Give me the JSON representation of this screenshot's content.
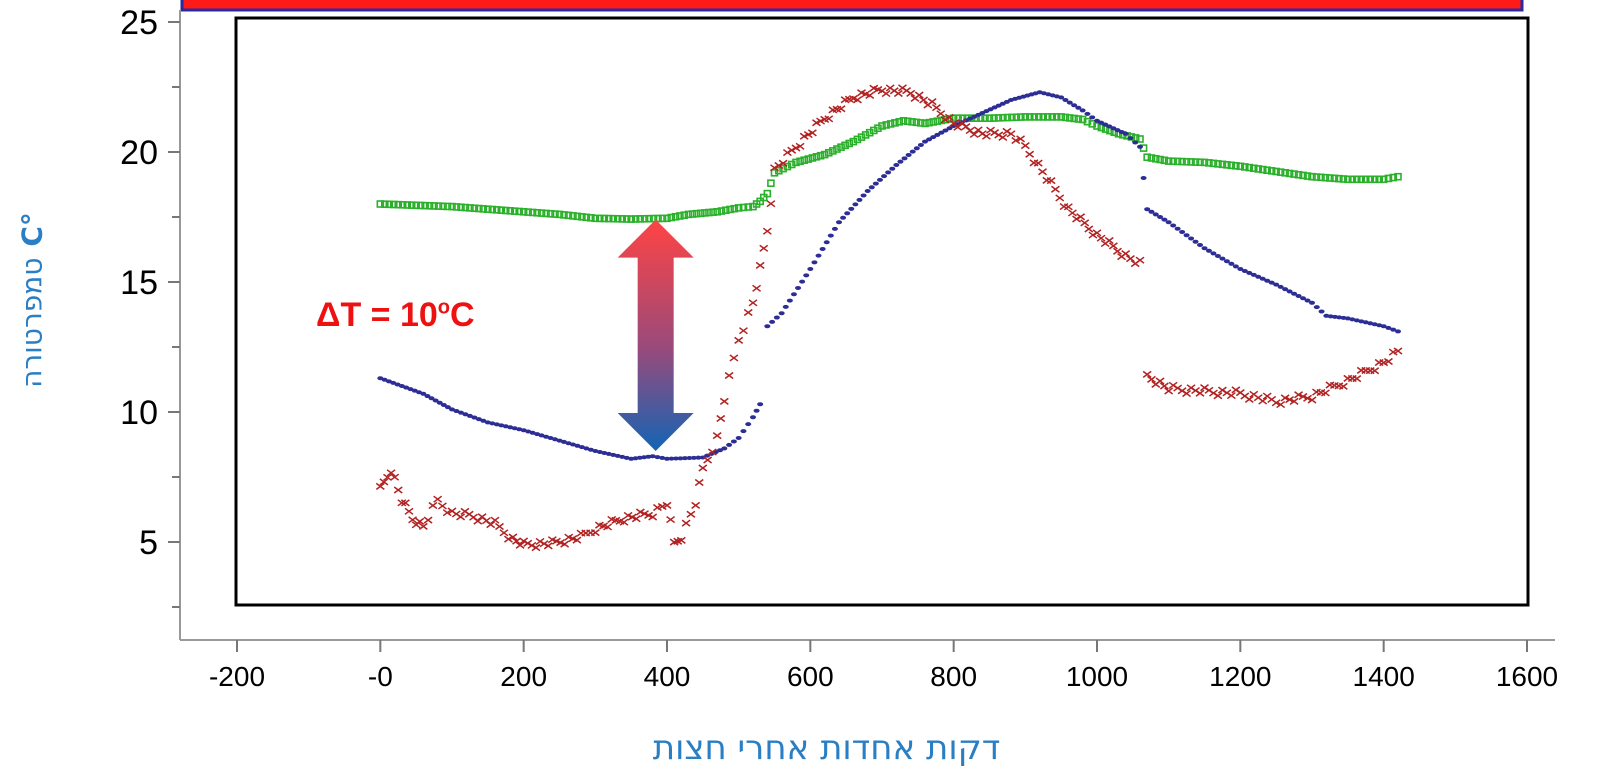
{
  "chart_data": {
    "type": "scatter",
    "title": "",
    "xlabel": "דקות אחדות אחרי חצות",
    "ylabel": "טמפרטורה",
    "ylabel_unit": "C°",
    "xlim": [
      -220,
      1600
    ],
    "ylim": [
      1.2,
      25
    ],
    "x_ticks": [
      -200,
      0,
      200,
      400,
      600,
      800,
      1000,
      1200,
      1400,
      1600
    ],
    "x_tick_labels": [
      "-200",
      "-0",
      "200",
      "400",
      "600",
      "800",
      "1000",
      "1200",
      "1400",
      "1600"
    ],
    "y_ticks": [
      5,
      10,
      15,
      20,
      25
    ],
    "y_tick_labels": [
      "5",
      "10",
      "15",
      "20",
      "25"
    ],
    "grid": false,
    "annotation": {
      "text_main": "ΔT = 10",
      "text_sup": "o",
      "text_unit": "C",
      "arrow_x": 380,
      "arrow_from": 8.5,
      "arrow_to": 17.4
    },
    "series": [
      {
        "color": "#2bb02b",
        "marker": "square-step",
        "points": [
          [
            0,
            18.0
          ],
          [
            50,
            17.95
          ],
          [
            100,
            17.9
          ],
          [
            150,
            17.8
          ],
          [
            200,
            17.7
          ],
          [
            250,
            17.6
          ],
          [
            300,
            17.45
          ],
          [
            350,
            17.42
          ],
          [
            400,
            17.45
          ],
          [
            430,
            17.6
          ],
          [
            470,
            17.7
          ],
          [
            500,
            17.85
          ],
          [
            520,
            17.9
          ],
          [
            530,
            18.1
          ],
          [
            540,
            18.4
          ],
          [
            550,
            19.2
          ],
          [
            580,
            19.6
          ],
          [
            620,
            19.9
          ],
          [
            660,
            20.4
          ],
          [
            700,
            21.0
          ],
          [
            730,
            21.2
          ],
          [
            760,
            21.1
          ],
          [
            800,
            21.3
          ],
          [
            850,
            21.3
          ],
          [
            900,
            21.35
          ],
          [
            950,
            21.35
          ],
          [
            980,
            21.25
          ],
          [
            1000,
            21.0
          ],
          [
            1030,
            20.7
          ],
          [
            1060,
            20.5
          ],
          [
            1070,
            19.8
          ],
          [
            1100,
            19.65
          ],
          [
            1150,
            19.6
          ],
          [
            1200,
            19.45
          ],
          [
            1250,
            19.25
          ],
          [
            1300,
            19.05
          ],
          [
            1350,
            18.95
          ],
          [
            1400,
            18.95
          ],
          [
            1420,
            19.05
          ]
        ]
      },
      {
        "color": "#2d2d96",
        "marker": "dot",
        "points": [
          [
            0,
            11.3
          ],
          [
            30,
            11.0
          ],
          [
            60,
            10.7
          ],
          [
            100,
            10.1
          ],
          [
            150,
            9.6
          ],
          [
            200,
            9.3
          ],
          [
            250,
            8.9
          ],
          [
            300,
            8.5
          ],
          [
            350,
            8.2
          ],
          [
            380,
            8.3
          ],
          [
            400,
            8.2
          ],
          [
            450,
            8.25
          ],
          [
            480,
            8.6
          ],
          [
            500,
            9.0
          ],
          [
            520,
            9.8
          ],
          [
            530,
            10.3
          ],
          [
            540,
            13.3
          ],
          [
            560,
            13.8
          ],
          [
            600,
            15.5
          ],
          [
            640,
            17.3
          ],
          [
            680,
            18.5
          ],
          [
            720,
            19.5
          ],
          [
            760,
            20.4
          ],
          [
            800,
            21.0
          ],
          [
            840,
            21.5
          ],
          [
            880,
            22.0
          ],
          [
            920,
            22.3
          ],
          [
            950,
            22.1
          ],
          [
            980,
            21.6
          ],
          [
            1000,
            21.2
          ],
          [
            1040,
            20.7
          ],
          [
            1060,
            20.2
          ],
          [
            1070,
            17.8
          ],
          [
            1100,
            17.3
          ],
          [
            1150,
            16.3
          ],
          [
            1200,
            15.5
          ],
          [
            1250,
            14.9
          ],
          [
            1300,
            14.2
          ],
          [
            1320,
            13.7
          ],
          [
            1350,
            13.6
          ],
          [
            1400,
            13.3
          ],
          [
            1420,
            13.1
          ]
        ]
      },
      {
        "color": "#b22222",
        "marker": "cross",
        "points": [
          [
            0,
            7.0
          ],
          [
            15,
            7.8
          ],
          [
            30,
            6.6
          ],
          [
            45,
            5.9
          ],
          [
            60,
            5.6
          ],
          [
            80,
            6.6
          ],
          [
            100,
            6.1
          ],
          [
            130,
            6.0
          ],
          [
            160,
            5.7
          ],
          [
            185,
            5.1
          ],
          [
            200,
            4.9
          ],
          [
            240,
            4.95
          ],
          [
            280,
            5.2
          ],
          [
            300,
            5.5
          ],
          [
            340,
            5.9
          ],
          [
            380,
            6.1
          ],
          [
            400,
            6.5
          ],
          [
            410,
            4.95
          ],
          [
            420,
            5.2
          ],
          [
            440,
            6.5
          ],
          [
            450,
            7.8
          ],
          [
            470,
            9.0
          ],
          [
            480,
            10.5
          ],
          [
            500,
            12.8
          ],
          [
            520,
            14.2
          ],
          [
            530,
            15.5
          ],
          [
            540,
            17.0
          ],
          [
            550,
            19.3
          ],
          [
            580,
            20.2
          ],
          [
            620,
            21.3
          ],
          [
            660,
            22.1
          ],
          [
            700,
            22.4
          ],
          [
            740,
            22.3
          ],
          [
            770,
            21.8
          ],
          [
            800,
            21.1
          ],
          [
            840,
            20.7
          ],
          [
            880,
            20.7
          ],
          [
            900,
            20.2
          ],
          [
            930,
            19.0
          ],
          [
            960,
            17.8
          ],
          [
            1000,
            16.8
          ],
          [
            1040,
            16.0
          ],
          [
            1060,
            15.7
          ],
          [
            1070,
            11.4
          ],
          [
            1100,
            10.9
          ],
          [
            1150,
            10.8
          ],
          [
            1200,
            10.7
          ],
          [
            1250,
            10.4
          ],
          [
            1300,
            10.6
          ],
          [
            1350,
            11.2
          ],
          [
            1400,
            11.9
          ],
          [
            1420,
            12.3
          ]
        ]
      }
    ]
  }
}
